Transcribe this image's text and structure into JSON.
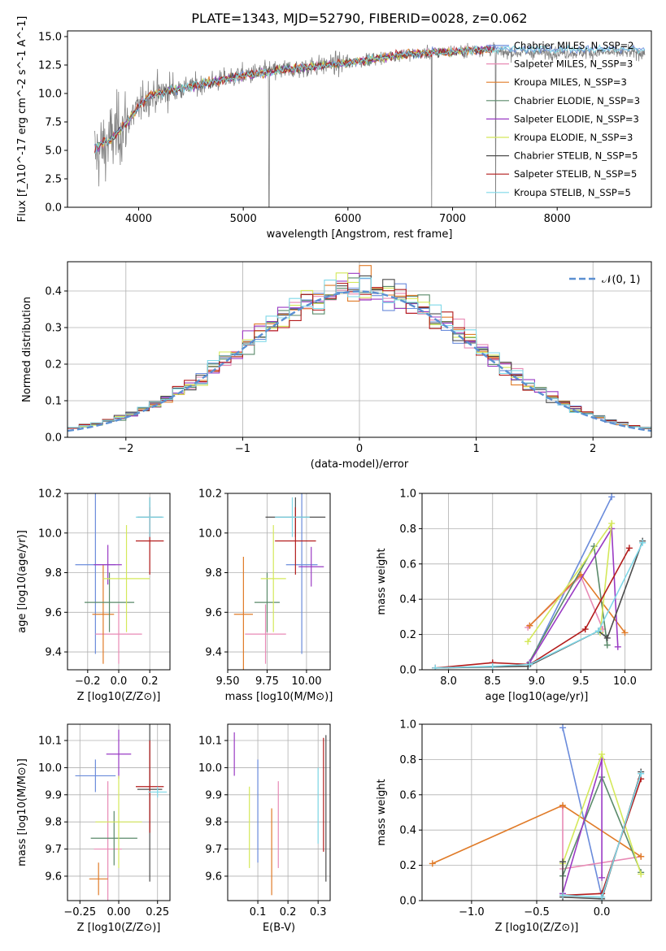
{
  "palette": {
    "Chabrier MILES": "#6a8bdb",
    "Salpeter MILES": "#e88ab5",
    "Kroupa MILES": "#e07b28",
    "Chabrier ELODIE": "#5a8a6a",
    "Salpeter ELODIE": "#9a3bc4",
    "Kroupa ELODIE": "#d4e85a",
    "Chabrier STELIB": "#4d4d4d",
    "Salpeter STELIB": "#b31b1b",
    "Kroupa STELIB": "#7fd8e8"
  },
  "chart_data": [
    {
      "id": "spectrum",
      "type": "line",
      "title": "PLATE=1343, MJD=52790, FIBERID=0028, z=0.062",
      "xlabel": "wavelength [Angstrom, rest frame]",
      "ylabel": "Flux [f_λ10^-17 erg cm^-2 s^-1 A^-1]",
      "xlim": [
        3320,
        8900
      ],
      "ylim": [
        0,
        15.5
      ],
      "xticks": [
        4000,
        5000,
        6000,
        7000,
        8000
      ],
      "yticks": [
        0.0,
        2.5,
        5.0,
        7.5,
        10.0,
        12.5,
        15.0
      ],
      "ytick_labels": [
        "0.0",
        "2.5",
        "5.0",
        "7.5",
        "10.0",
        "12.5",
        "15.0"
      ],
      "data_color": "#808080",
      "continuum": {
        "x": [
          3580,
          3700,
          3800,
          3900,
          4000,
          4100,
          4300,
          4500,
          5000,
          5500,
          6000,
          6500,
          7000,
          7400
        ],
        "y": [
          4.6,
          5.6,
          6.6,
          7.6,
          8.8,
          9.8,
          10.3,
          10.6,
          11.6,
          12.2,
          12.7,
          13.4,
          13.7,
          13.9
        ]
      },
      "legend": [
        {
          "name": "Chabrier MILES, N_SSP=2"
        },
        {
          "name": "Salpeter MILES, N_SSP=3"
        },
        {
          "name": "Kroupa MILES, N_SSP=3"
        },
        {
          "name": "Chabrier ELODIE, N_SSP=3"
        },
        {
          "name": "Salpeter ELODIE, N_SSP=3"
        },
        {
          "name": "Kroupa ELODIE, N_SSP=3"
        },
        {
          "name": "Chabrier STELIB, N_SSP=5"
        },
        {
          "name": "Salpeter STELIB, N_SSP=5"
        },
        {
          "name": "Kroupa STELIB, N_SSP=5"
        }
      ]
    },
    {
      "id": "residuals",
      "type": "line",
      "xlabel": "(data-model)/error",
      "ylabel": "Normed distribution",
      "xlim": [
        -2.5,
        2.5
      ],
      "ylim": [
        0,
        0.48
      ],
      "xticks": [
        -2,
        -1,
        0,
        1,
        2
      ],
      "xtick_labels": [
        "−2",
        "−1",
        "0",
        "1",
        "2"
      ],
      "yticks": [
        0.0,
        0.1,
        0.2,
        0.3,
        0.4
      ],
      "ytick_labels": [
        "0.0",
        "0.1",
        "0.2",
        "0.3",
        "0.4"
      ],
      "bin_edges": [
        -2.5,
        2.5
      ],
      "bins": 50,
      "gaussian_label": "𝒩(0, 1)",
      "gaussian_color": "#5b8fd1"
    },
    {
      "id": "age_vs_Z",
      "type": "scatter",
      "xlabel": "Z [log10(Z/Z⊙)]",
      "ylabel": "age  [log10(age/yr)]",
      "xlim": [
        -0.33,
        0.33
      ],
      "ylim": [
        9.31,
        10.2
      ],
      "xticks": [
        -0.2,
        0.0,
        0.2
      ],
      "xtick_labels": [
        "−0.2",
        "0.0",
        "0.2"
      ],
      "yticks": [
        9.4,
        9.6,
        9.8,
        10.0,
        10.2
      ],
      "ytick_labels": [
        "9.4",
        "9.6",
        "9.8",
        "10.0",
        "10.2"
      ],
      "points": [
        {
          "model": "Chabrier MILES",
          "x": -0.15,
          "xerr": 0.13,
          "y": 9.84,
          "yerr": 0.45
        },
        {
          "model": "Salpeter MILES",
          "x": 0.0,
          "xerr": 0.15,
          "y": 9.49,
          "yerr": 0.15
        },
        {
          "model": "Kroupa MILES",
          "x": -0.1,
          "xerr": 0.07,
          "y": 9.59,
          "yerr": 0.25
        },
        {
          "model": "Chabrier ELODIE",
          "x": -0.06,
          "xerr": 0.16,
          "y": 9.65,
          "yerr": 0.15
        },
        {
          "model": "Salpeter ELODIE",
          "x": -0.07,
          "xerr": 0.09,
          "y": 9.84,
          "yerr": 0.1
        },
        {
          "model": "Kroupa ELODIE",
          "x": 0.05,
          "xerr": 0.15,
          "y": 9.77,
          "yerr": 0.27
        },
        {
          "model": "Chabrier STELIB",
          "x": 0.2,
          "xerr": 0.08,
          "y": 10.08,
          "yerr": 0.1
        },
        {
          "model": "Salpeter STELIB",
          "x": 0.2,
          "xerr": 0.09,
          "y": 9.96,
          "yerr": 0.17
        },
        {
          "model": "Kroupa STELIB",
          "x": 0.2,
          "xerr": 0.09,
          "y": 10.08,
          "yerr": 0.1
        }
      ]
    },
    {
      "id": "age_vs_mass",
      "type": "scatter",
      "xlabel": "mass [log10(M/M⊙)]",
      "xlim": [
        9.5,
        10.15
      ],
      "ylim": [
        9.31,
        10.2
      ],
      "xticks": [
        9.5,
        9.75,
        10.0
      ],
      "xtick_labels": [
        "9.50",
        "9.75",
        "10.00"
      ],
      "yticks": [
        9.4,
        9.6,
        9.8,
        10.0,
        10.2
      ],
      "ytick_labels": [
        "9.4",
        "9.6",
        "9.8",
        "10.0",
        "10.2"
      ],
      "points": [
        {
          "model": "Chabrier MILES",
          "x": 9.97,
          "xerr": 0.1,
          "y": 9.84,
          "yerr": 0.45
        },
        {
          "model": "Salpeter MILES",
          "x": 9.74,
          "xerr": 0.13,
          "y": 9.49,
          "yerr": 0.15
        },
        {
          "model": "Kroupa MILES",
          "x": 9.6,
          "xerr": 0.06,
          "y": 9.59,
          "yerr": 0.29
        },
        {
          "model": "Chabrier ELODIE",
          "x": 9.75,
          "xerr": 0.08,
          "y": 9.65,
          "yerr": 0.15
        },
        {
          "model": "Salpeter ELODIE",
          "x": 10.03,
          "xerr": 0.08,
          "y": 9.83,
          "yerr": 0.1
        },
        {
          "model": "Kroupa ELODIE",
          "x": 9.79,
          "xerr": 0.08,
          "y": 9.77,
          "yerr": 0.27
        },
        {
          "model": "Chabrier STELIB",
          "x": 9.93,
          "xerr": 0.19,
          "y": 10.08,
          "yerr": 0.1
        },
        {
          "model": "Salpeter STELIB",
          "x": 9.93,
          "xerr": 0.13,
          "y": 9.96,
          "yerr": 0.17
        },
        {
          "model": "Kroupa STELIB",
          "x": 9.91,
          "xerr": 0.11,
          "y": 10.08,
          "yerr": 0.1
        }
      ]
    },
    {
      "id": "weight_vs_age",
      "type": "line",
      "xlabel": "age  [log10(age/yr)]",
      "ylabel": "mass weight",
      "xlim": [
        7.7,
        10.3
      ],
      "ylim": [
        0,
        1.0
      ],
      "xticks": [
        8.0,
        8.5,
        9.0,
        9.5,
        10.0
      ],
      "xtick_labels": [
        "8.0",
        "8.5",
        "9.0",
        "9.5",
        "10.0"
      ],
      "yticks": [
        0.0,
        0.2,
        0.4,
        0.6,
        0.8,
        1.0
      ],
      "ytick_labels": [
        "0.0",
        "0.2",
        "0.4",
        "0.6",
        "0.8",
        "1.0"
      ],
      "series": [
        {
          "model": "Chabrier MILES",
          "x": [
            8.9,
            9.85
          ],
          "y": [
            0.02,
            0.98
          ]
        },
        {
          "model": "Salpeter MILES",
          "x": [
            8.9,
            9.5,
            9.75
          ],
          "y": [
            0.24,
            0.53,
            0.23
          ]
        },
        {
          "model": "Kroupa MILES",
          "x": [
            8.92,
            9.5,
            10.0
          ],
          "y": [
            0.25,
            0.54,
            0.21
          ]
        },
        {
          "model": "Chabrier ELODIE",
          "x": [
            8.9,
            9.65,
            9.8
          ],
          "y": [
            0.03,
            0.7,
            0.14
          ]
        },
        {
          "model": "Salpeter ELODIE",
          "x": [
            8.92,
            9.85,
            9.92
          ],
          "y": [
            0.04,
            0.8,
            0.13
          ]
        },
        {
          "model": "Kroupa ELODIE",
          "x": [
            8.9,
            9.85,
            9.72
          ],
          "y": [
            0.16,
            0.83,
            0.21
          ]
        },
        {
          "model": "Chabrier STELIB",
          "x": [
            7.85,
            8.9,
            9.7,
            9.8,
            10.2
          ],
          "y": [
            0.01,
            0.02,
            0.22,
            0.18,
            0.73
          ]
        },
        {
          "model": "Salpeter STELIB",
          "x": [
            7.85,
            8.5,
            8.92,
            9.55,
            10.05
          ],
          "y": [
            0.01,
            0.04,
            0.03,
            0.23,
            0.69
          ]
        },
        {
          "model": "Kroupa STELIB",
          "x": [
            7.85,
            8.5,
            8.92,
            9.7,
            10.2
          ],
          "y": [
            0.01,
            0.02,
            0.03,
            0.22,
            0.72
          ]
        }
      ]
    },
    {
      "id": "mass_vs_Z",
      "type": "scatter",
      "xlabel": "Z [log10(Z/Z⊙)]",
      "ylabel": "mass [log10(M/M⊙)]",
      "xlim": [
        -0.33,
        0.33
      ],
      "ylim": [
        9.51,
        10.16
      ],
      "xticks": [
        -0.25,
        0.0,
        0.25
      ],
      "xtick_labels": [
        "−0.25",
        "0.00",
        "0.25"
      ],
      "yticks": [
        9.6,
        9.7,
        9.8,
        9.9,
        10.0,
        10.1
      ],
      "ytick_labels": [
        "9.6",
        "9.7",
        "9.8",
        "9.9",
        "10.0",
        "10.1"
      ],
      "points": [
        {
          "model": "Chabrier MILES",
          "x": -0.15,
          "xerr": 0.13,
          "y": 9.97,
          "yerr": 0.06
        },
        {
          "model": "Salpeter MILES",
          "x": -0.07,
          "xerr": 0.09,
          "y": 9.7,
          "yerr": 0.25
        },
        {
          "model": "Kroupa MILES",
          "x": -0.13,
          "xerr": 0.06,
          "y": 9.59,
          "yerr": 0.06
        },
        {
          "model": "Chabrier ELODIE",
          "x": -0.03,
          "xerr": 0.15,
          "y": 9.74,
          "yerr": 0.1
        },
        {
          "model": "Salpeter ELODIE",
          "x": 0.0,
          "xerr": 0.08,
          "y": 10.05,
          "yerr": 0.09
        },
        {
          "model": "Kroupa ELODIE",
          "x": 0.0,
          "xerr": 0.15,
          "y": 9.8,
          "yerr": 0.17
        },
        {
          "model": "Chabrier STELIB",
          "x": 0.2,
          "xerr": 0.08,
          "y": 9.92,
          "yerr": 0.34
        },
        {
          "model": "Salpeter STELIB",
          "x": 0.2,
          "xerr": 0.09,
          "y": 9.93,
          "yerr": 0.17
        },
        {
          "model": "Kroupa STELIB",
          "x": 0.25,
          "xerr": 0.06,
          "y": 9.91,
          "yerr": 0.02
        }
      ]
    },
    {
      "id": "mass_vs_ebv",
      "type": "scatter",
      "xlabel": "E(B-V)",
      "xlim": [
        0.0,
        0.34
      ],
      "ylim": [
        9.51,
        10.16
      ],
      "xticks": [
        0.1,
        0.2,
        0.3
      ],
      "xtick_labels": [
        "0.1",
        "0.2",
        "0.3"
      ],
      "yticks": [
        9.6,
        9.7,
        9.8,
        9.9,
        10.0,
        10.1
      ],
      "ytick_labels": [
        "9.6",
        "9.7",
        "9.8",
        "9.9",
        "10.0",
        "10.1"
      ],
      "points": [
        {
          "model": "Salpeter ELODIE",
          "x": 0.022,
          "y": 10.05,
          "yerr": 0.08
        },
        {
          "model": "Kroupa ELODIE",
          "x": 0.072,
          "y": 9.78,
          "yerr": 0.15
        },
        {
          "model": "Chabrier MILES",
          "x": 0.1,
          "y": 9.84,
          "yerr": 0.19
        },
        {
          "model": "Kroupa MILES",
          "x": 0.146,
          "y": 9.69,
          "yerr": 0.16
        },
        {
          "model": "Salpeter MILES",
          "x": 0.168,
          "y": 9.79,
          "yerr": 0.16
        },
        {
          "model": "Kroupa STELIB",
          "x": 0.3,
          "y": 9.86,
          "yerr": 0.14
        },
        {
          "model": "Salpeter STELIB",
          "x": 0.318,
          "y": 9.9,
          "yerr": 0.21
        },
        {
          "model": "Chabrier STELIB",
          "x": 0.326,
          "y": 9.85,
          "yerr": 0.27
        }
      ]
    },
    {
      "id": "weight_vs_Z",
      "type": "line",
      "xlabel": "Z [log10(Z/Z⊙)]",
      "ylabel": "mass weight",
      "xlim": [
        -1.38,
        0.38
      ],
      "ylim": [
        0,
        1.0
      ],
      "xticks": [
        -1.0,
        -0.5,
        0.0
      ],
      "xtick_labels": [
        "−1.0",
        "−0.5",
        "0.0"
      ],
      "yticks": [
        0.0,
        0.2,
        0.4,
        0.6,
        0.8,
        1.0
      ],
      "ytick_labels": [
        "0.0",
        "0.2",
        "0.4",
        "0.6",
        "0.8",
        "1.0"
      ],
      "series": [
        {
          "model": "Chabrier MILES",
          "x": [
            -0.3,
            0.0
          ],
          "y": [
            0.98,
            0.02
          ]
        },
        {
          "model": "Salpeter MILES",
          "x": [
            -0.3,
            -0.3,
            0.3
          ],
          "y": [
            0.53,
            0.18,
            0.25
          ]
        },
        {
          "model": "Kroupa MILES",
          "x": [
            -1.3,
            -0.3,
            0.3
          ],
          "y": [
            0.21,
            0.54,
            0.25
          ]
        },
        {
          "model": "Chabrier ELODIE",
          "x": [
            -0.3,
            0.0,
            0.3
          ],
          "y": [
            0.14,
            0.7,
            0.16
          ]
        },
        {
          "model": "Salpeter ELODIE",
          "x": [
            -0.3,
            0.0,
            0.0
          ],
          "y": [
            0.04,
            0.8,
            0.13
          ]
        },
        {
          "model": "Kroupa ELODIE",
          "x": [
            -0.3,
            0.0,
            0.3
          ],
          "y": [
            0.21,
            0.83,
            0.15
          ]
        },
        {
          "model": "Chabrier STELIB",
          "x": [
            -0.3,
            -0.3,
            0.0,
            0.3
          ],
          "y": [
            0.22,
            0.02,
            0.01,
            0.73
          ]
        },
        {
          "model": "Salpeter STELIB",
          "x": [
            -0.3,
            0.0,
            0.3
          ],
          "y": [
            0.03,
            0.04,
            0.69
          ]
        },
        {
          "model": "Kroupa STELIB",
          "x": [
            -0.3,
            0.0,
            0.3
          ],
          "y": [
            0.03,
            0.02,
            0.72
          ]
        }
      ]
    }
  ]
}
